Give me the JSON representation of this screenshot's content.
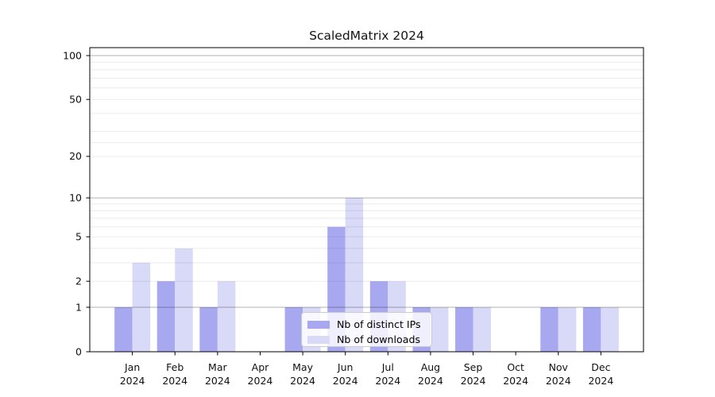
{
  "window": {
    "background": "#ffffff"
  },
  "chart_data": {
    "type": "bar",
    "title": "ScaledMatrix 2024",
    "categories": [
      "Jan",
      "Feb",
      "Mar",
      "Apr",
      "May",
      "Jun",
      "Jul",
      "Aug",
      "Sep",
      "Oct",
      "Nov",
      "Dec"
    ],
    "year": "2024",
    "series": [
      {
        "name": "Nb of distinct IPs",
        "color": "#a8a8f0",
        "values": [
          1,
          2,
          1,
          0,
          1,
          6,
          2,
          1,
          1,
          0,
          1,
          1
        ]
      },
      {
        "name": "Nb of downloads",
        "color": "#d9d9f8",
        "values": [
          3,
          4,
          2,
          0,
          1,
          10,
          2,
          1,
          1,
          0,
          1,
          1
        ]
      }
    ],
    "y_ticks": [
      0,
      1,
      2,
      5,
      10,
      20,
      50,
      100
    ],
    "y_scale": "log1p",
    "ylim": [
      0,
      100
    ],
    "xlabel": "",
    "ylabel": "",
    "grid": "on",
    "legend_position": "lower center"
  },
  "colors": {
    "minor_gridline": "rgba(0,0,0,0.08)",
    "major_gridline": "rgba(0,0,0,0.30)",
    "axis": "#000000",
    "tick_text": "#111111",
    "legend_border": "#cccccc",
    "legend_background": "rgba(255,255,255,0.82)"
  }
}
